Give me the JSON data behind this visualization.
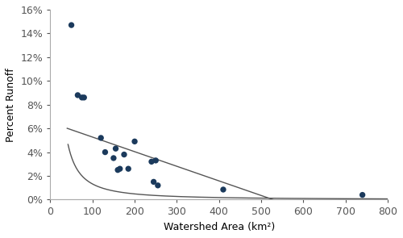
{
  "scatter_x": [
    50,
    65,
    75,
    80,
    120,
    130,
    150,
    155,
    160,
    165,
    175,
    185,
    200,
    240,
    245,
    250,
    255,
    410,
    740
  ],
  "scatter_y": [
    14.7,
    8.8,
    8.6,
    8.6,
    5.2,
    4.0,
    3.5,
    4.3,
    2.5,
    2.6,
    3.8,
    2.6,
    4.9,
    3.2,
    1.5,
    3.3,
    1.2,
    0.85,
    0.4
  ],
  "dot_color": "#1b3a5c",
  "dot_size": 28,
  "curve1_a": 1050.0,
  "curve1_b": -1.45,
  "curve2_a": 6.5,
  "curve2_b": -0.0123,
  "xlim": [
    0,
    800
  ],
  "ylim": [
    0,
    16
  ],
  "xticks": [
    0,
    100,
    200,
    300,
    400,
    500,
    600,
    700,
    800
  ],
  "ytick_vals": [
    0,
    2,
    4,
    6,
    8,
    10,
    12,
    14,
    16
  ],
  "ytick_labels": [
    "0%",
    "2%",
    "4%",
    "6%",
    "8%",
    "10%",
    "12%",
    "14%",
    "16%"
  ],
  "xlabel": "Watershed Area (km²)",
  "ylabel": "Percent Runoff",
  "curve_color": "#555555",
  "curve_linewidth": 1.0,
  "spine_color": "#aaaaaa",
  "figure_width": 5.0,
  "figure_height": 2.95,
  "dpi": 100
}
